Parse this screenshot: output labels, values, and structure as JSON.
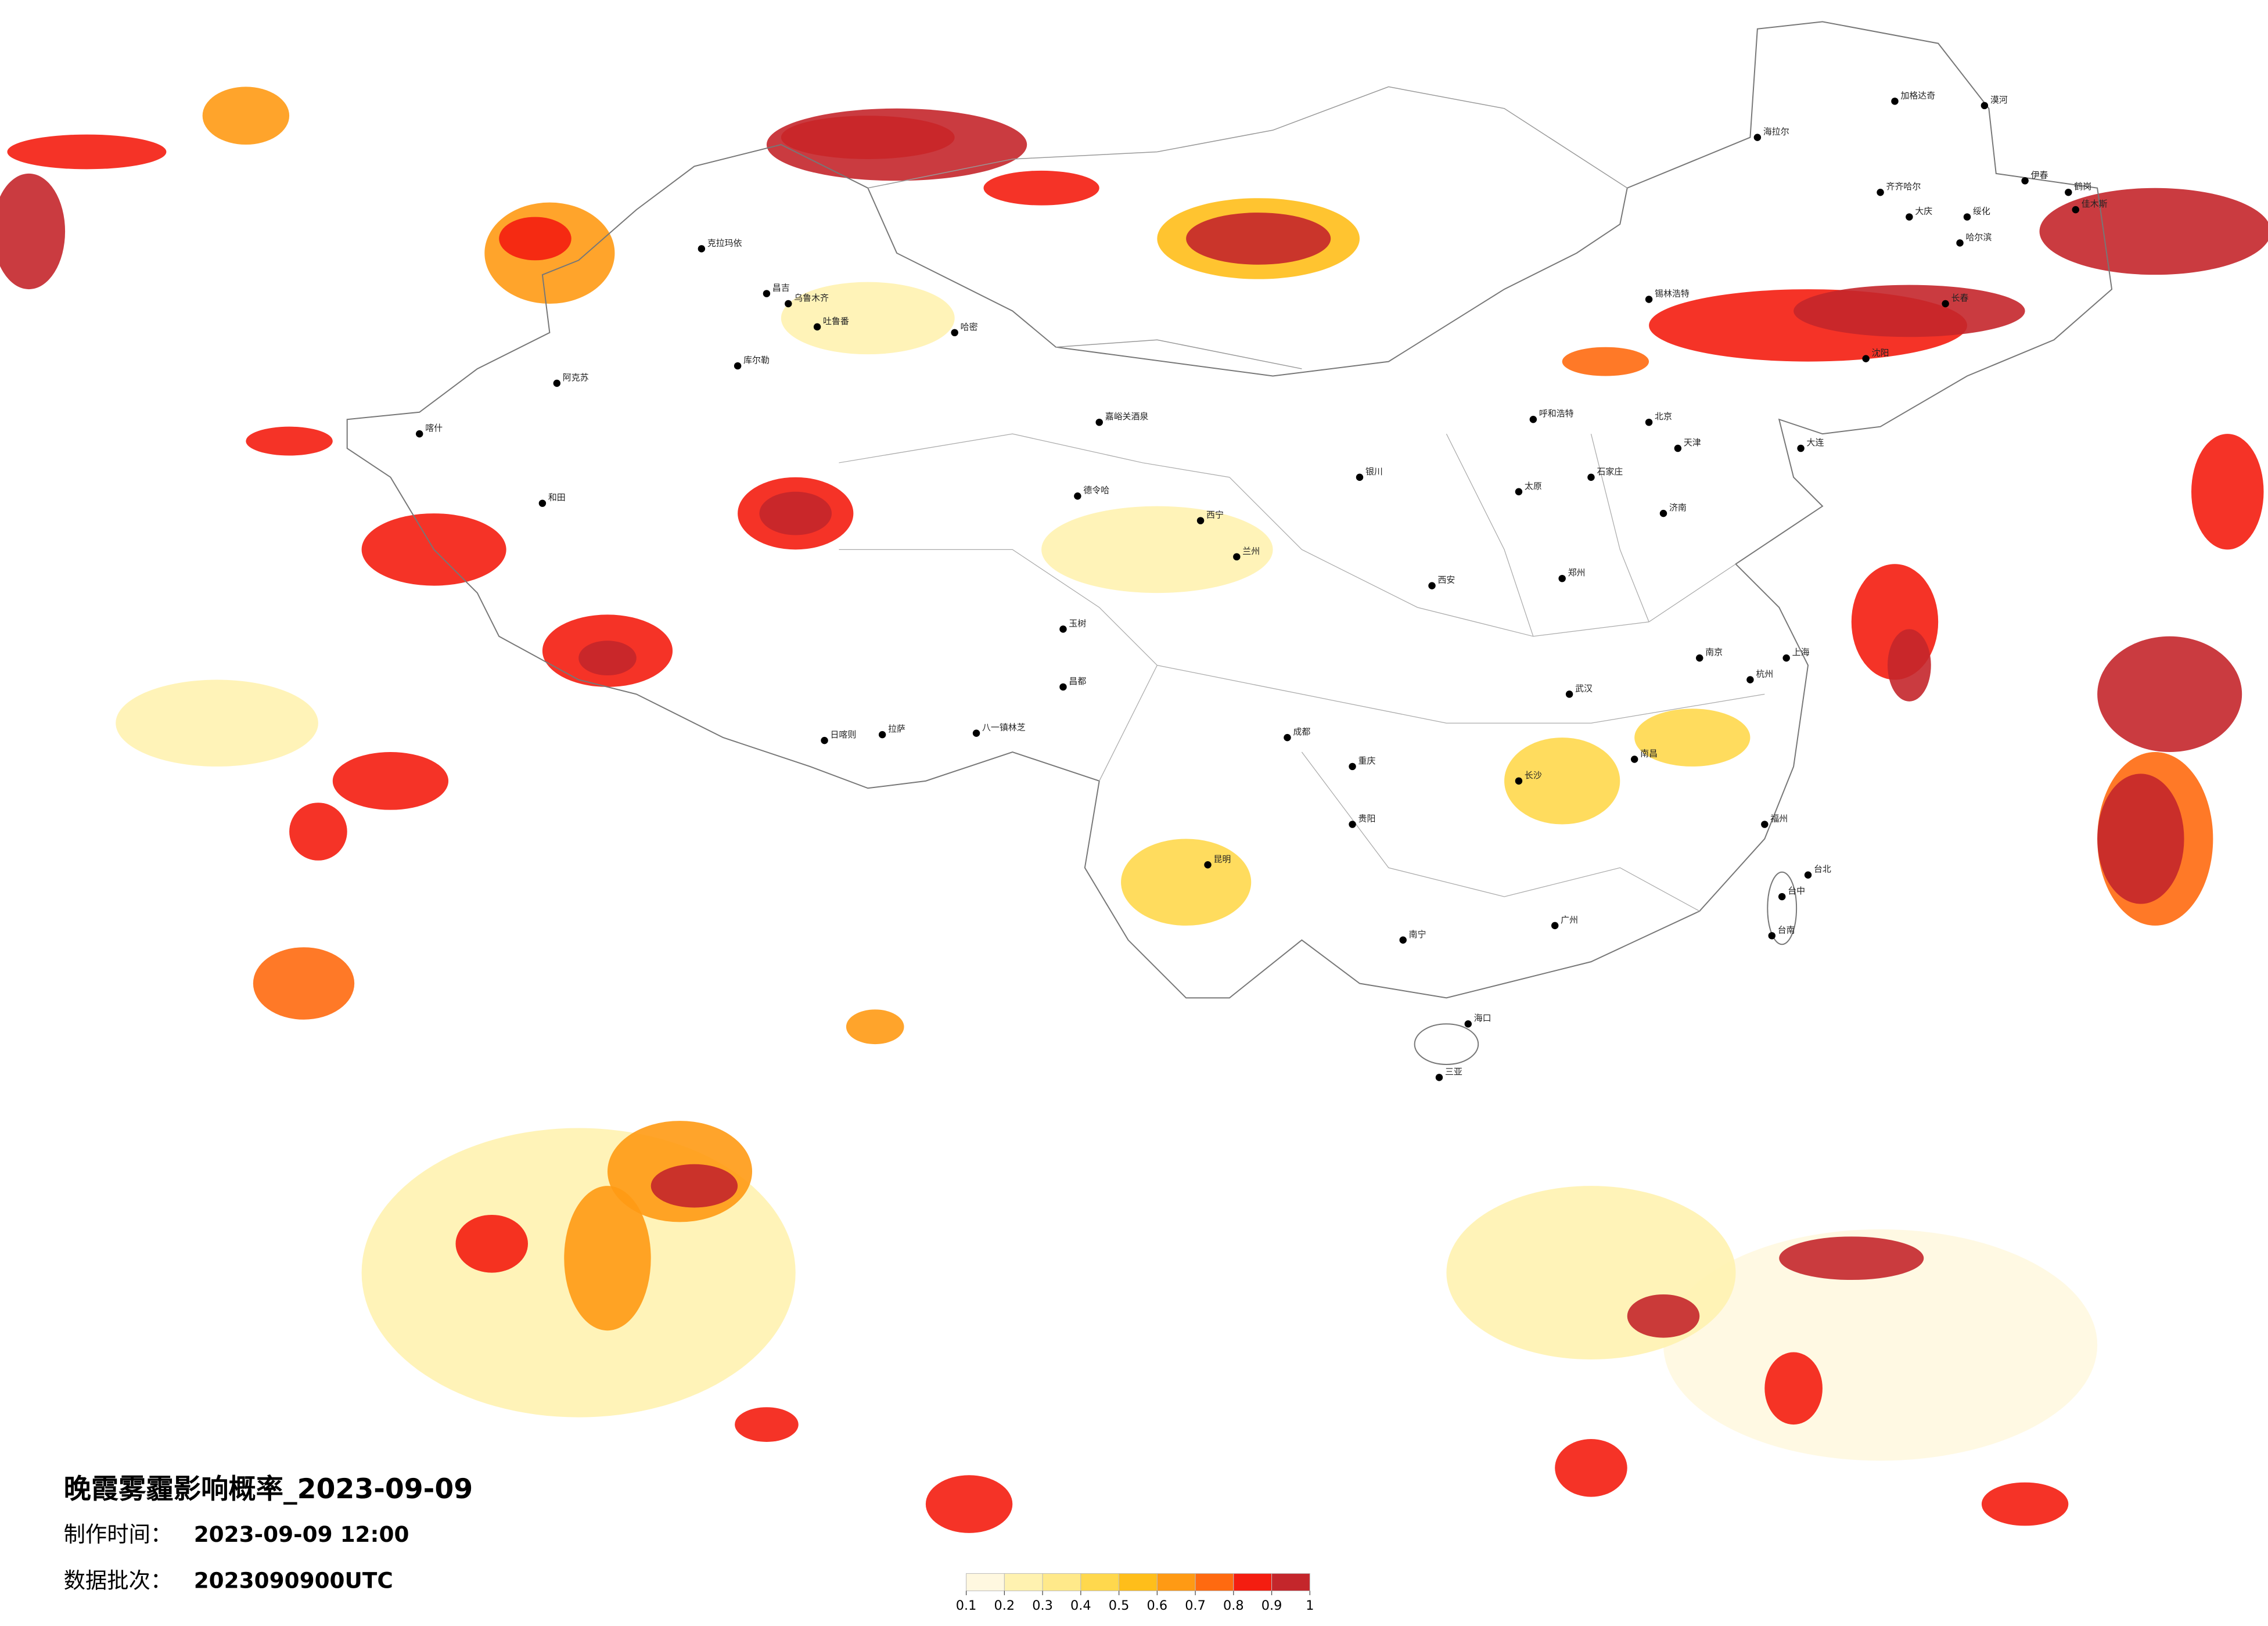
{
  "title": "晚霞雾霾影响概率_2023-09-09",
  "made_label": "制作时间：",
  "made_time": "2023-09-09 12:00",
  "batch_label": "数据批次：",
  "batch": "2023090900UTC",
  "legend": {
    "ticks": [
      0.1,
      0.2,
      0.3,
      0.4,
      0.5,
      0.6,
      0.7,
      0.8,
      0.9,
      1
    ],
    "colors": [
      "#fff8e0",
      "#fff2b0",
      "#ffe98a",
      "#ffd84d",
      "#ffbe1a",
      "#ff9a14",
      "#ff6a10",
      "#f41d10",
      "#c4262b"
    ]
  },
  "cities": [
    "漠河",
    "加格达奇",
    "海拉尔",
    "齐齐哈尔",
    "大庆",
    "绥化",
    "哈尔滨",
    "伊春",
    "鹤岗",
    "佳木斯",
    "长春",
    "沈阳",
    "大连",
    "锡林浩特",
    "呼和浩特",
    "北京",
    "天津",
    "石家庄",
    "太原",
    "济南",
    "郑州",
    "西安",
    "兰州",
    "西宁",
    "银川",
    "克拉玛依",
    "昌吉",
    "乌鲁木齐",
    "吐鲁番",
    "哈密",
    "库尔勒",
    "阿克苏",
    "喀什",
    "和田",
    "嘉峪关酒泉",
    "德令哈",
    "玉树",
    "昌都",
    "拉萨",
    "日喀则",
    "八一镇林芝",
    "成都",
    "重庆",
    "贵阳",
    "昆明",
    "南宁",
    "广州",
    "长沙",
    "武汉",
    "南昌",
    "南京",
    "上海",
    "杭州",
    "福州",
    "台北",
    "台中",
    "台南",
    "海口",
    "三亚"
  ]
}
